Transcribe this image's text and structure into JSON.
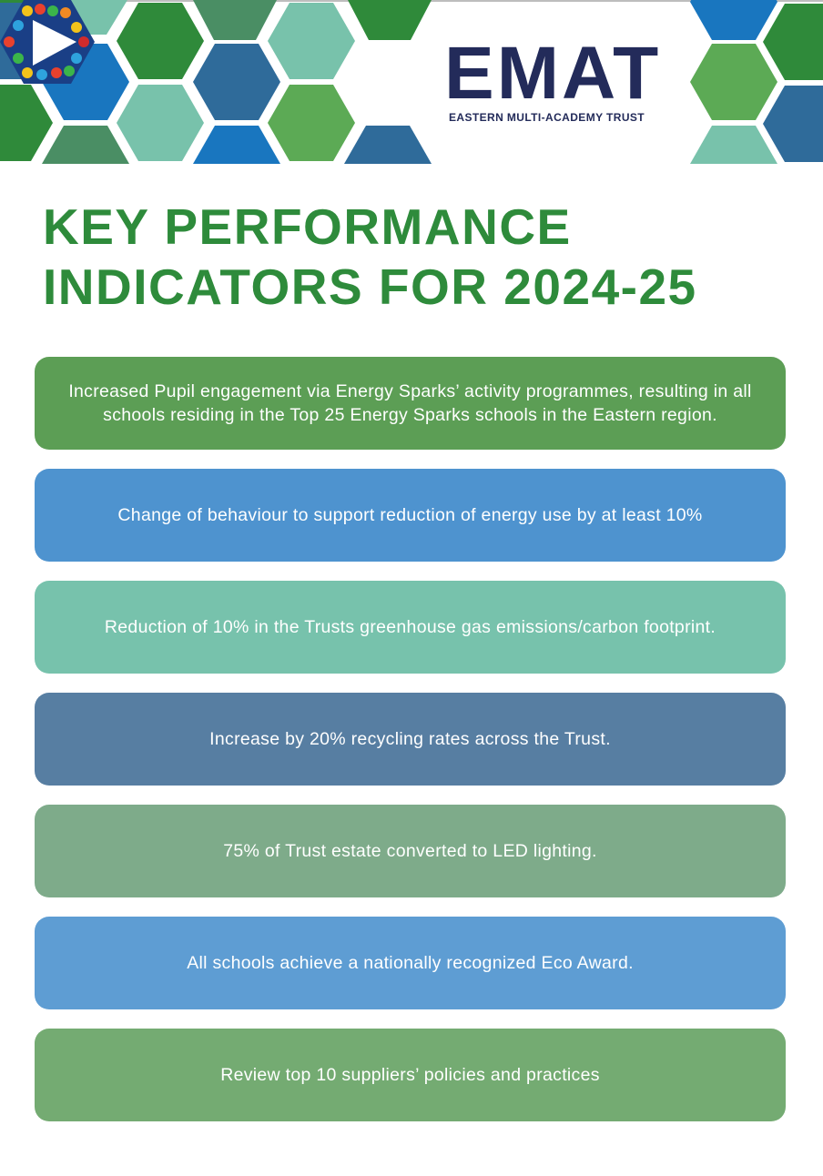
{
  "logo": {
    "wordmark": "EMAT",
    "subtitle": "EASTERN MULTI-ACADEMY TRUST"
  },
  "title": {
    "line1": "KEY PERFORMANCE",
    "line2": "INDICATORS FOR 2024-25"
  },
  "colors": {
    "title_green": "#2e8b3b",
    "logo_navy": "#232b5a"
  },
  "kpis": [
    {
      "text": "Increased Pupil engagement via Energy Sparks’ activity programmes, resulting in all schools residing in the Top 25 Energy Sparks schools in the Eastern region.",
      "color": "#5c9e55"
    },
    {
      "text": "Change of behaviour to support reduction of energy use by at least 10%",
      "color": "#4e93cf"
    },
    {
      "text": "Reduction of 10% in the Trusts greenhouse gas emissions/carbon footprint.",
      "color": "#77c2ac"
    },
    {
      "text": "Increase by 20% recycling rates across the Trust.",
      "color": "#577ea2"
    },
    {
      "text": "75% of Trust estate converted to LED lighting.",
      "color": "#7eab8a"
    },
    {
      "text": "All schools achieve a nationally recognized Eco Award.",
      "color": "#5e9dd3"
    },
    {
      "text": "Review top 10 suppliers’ policies and practices",
      "color": "#74ab72"
    }
  ]
}
